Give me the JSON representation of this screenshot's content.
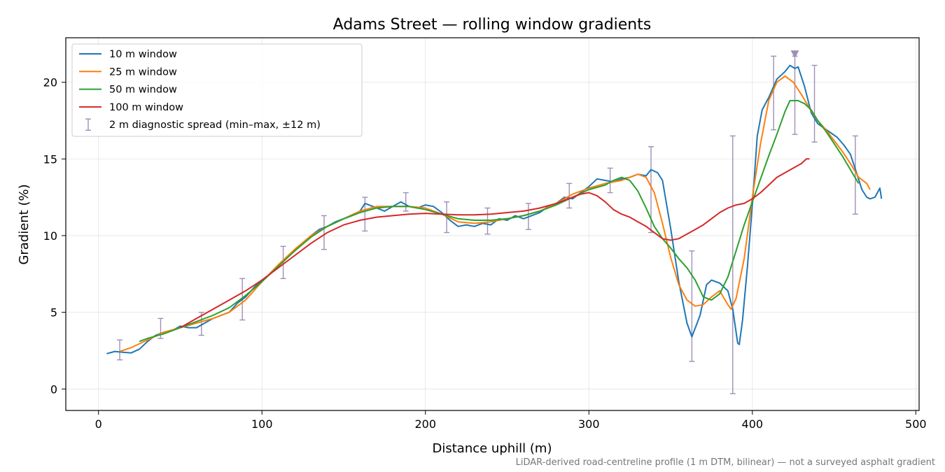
{
  "chart_data": {
    "type": "line",
    "title": "Adams Street — rolling window gradients",
    "xlabel": "Distance uphill (m)",
    "ylabel": "Gradient (%)",
    "xlim": [
      -20,
      502
    ],
    "ylim": [
      -1.4,
      22.9
    ],
    "xticks": [
      0,
      100,
      200,
      300,
      400,
      500
    ],
    "yticks": [
      0,
      5,
      10,
      15,
      20
    ],
    "grid": true,
    "legend_position": "top-left",
    "footnote": "LiDAR-derived road-centreline profile (1 m DTM, bilinear) — not a surveyed asphalt gradient",
    "series": [
      {
        "name": "10 m window",
        "color": "#1f77b4",
        "points": [
          [
            5,
            2.3
          ],
          [
            10,
            2.45
          ],
          [
            15,
            2.4
          ],
          [
            20,
            2.35
          ],
          [
            25,
            2.6
          ],
          [
            30,
            3.1
          ],
          [
            35,
            3.5
          ],
          [
            40,
            3.7
          ],
          [
            45,
            3.8
          ],
          [
            50,
            4.1
          ],
          [
            55,
            4.0
          ],
          [
            60,
            4.0
          ],
          [
            65,
            4.3
          ],
          [
            70,
            4.6
          ],
          [
            75,
            4.8
          ],
          [
            80,
            5.0
          ],
          [
            85,
            5.6
          ],
          [
            90,
            6.0
          ],
          [
            95,
            6.6
          ],
          [
            100,
            7.1
          ],
          [
            105,
            7.5
          ],
          [
            110,
            8.0
          ],
          [
            115,
            8.6
          ],
          [
            120,
            9.0
          ],
          [
            125,
            9.5
          ],
          [
            130,
            10.0
          ],
          [
            135,
            10.4
          ],
          [
            140,
            10.6
          ],
          [
            145,
            10.9
          ],
          [
            150,
            11.1
          ],
          [
            155,
            11.3
          ],
          [
            160,
            11.6
          ],
          [
            163,
            12.1
          ],
          [
            168,
            11.9
          ],
          [
            175,
            11.6
          ],
          [
            180,
            11.9
          ],
          [
            185,
            12.2
          ],
          [
            190,
            11.9
          ],
          [
            195,
            11.8
          ],
          [
            200,
            12.0
          ],
          [
            205,
            11.9
          ],
          [
            210,
            11.5
          ],
          [
            215,
            11.0
          ],
          [
            220,
            10.6
          ],
          [
            225,
            10.7
          ],
          [
            230,
            10.6
          ],
          [
            235,
            10.8
          ],
          [
            240,
            10.7
          ],
          [
            245,
            11.1
          ],
          [
            250,
            11.0
          ],
          [
            255,
            11.3
          ],
          [
            260,
            11.1
          ],
          [
            265,
            11.3
          ],
          [
            270,
            11.5
          ],
          [
            275,
            11.9
          ],
          [
            280,
            12.1
          ],
          [
            285,
            12.5
          ],
          [
            290,
            12.4
          ],
          [
            295,
            12.8
          ],
          [
            300,
            13.2
          ],
          [
            305,
            13.7
          ],
          [
            310,
            13.6
          ],
          [
            315,
            13.5
          ],
          [
            320,
            13.7
          ],
          [
            325,
            13.8
          ],
          [
            330,
            14.0
          ],
          [
            335,
            13.9
          ],
          [
            338,
            14.3
          ],
          [
            342,
            14.1
          ],
          [
            345,
            13.6
          ],
          [
            350,
            10.5
          ],
          [
            355,
            7.0
          ],
          [
            360,
            4.3
          ],
          [
            363,
            3.4
          ],
          [
            368,
            4.8
          ],
          [
            372,
            6.8
          ],
          [
            375,
            7.1
          ],
          [
            380,
            6.9
          ],
          [
            385,
            6.4
          ],
          [
            388,
            5.2
          ],
          [
            391,
            3.0
          ],
          [
            392,
            2.9
          ],
          [
            394,
            4.5
          ],
          [
            397,
            8.0
          ],
          [
            400,
            12.0
          ],
          [
            403,
            16.5
          ],
          [
            406,
            18.2
          ],
          [
            410,
            19.0
          ],
          [
            415,
            20.2
          ],
          [
            420,
            20.7
          ],
          [
            423,
            21.1
          ],
          [
            426,
            20.9
          ],
          [
            428,
            21.0
          ],
          [
            432,
            19.7
          ],
          [
            436,
            18.0
          ],
          [
            440,
            17.3
          ],
          [
            444,
            17.0
          ],
          [
            448,
            16.7
          ],
          [
            452,
            16.4
          ],
          [
            456,
            15.9
          ],
          [
            460,
            15.3
          ],
          [
            464,
            14.0
          ],
          [
            467,
            13.0
          ],
          [
            470,
            12.5
          ],
          [
            472,
            12.4
          ],
          [
            475,
            12.5
          ],
          [
            478,
            13.1
          ],
          [
            479,
            12.4
          ]
        ]
      },
      {
        "name": "25 m window",
        "color": "#ff7f0e",
        "points": [
          [
            13,
            2.45
          ],
          [
            20,
            2.7
          ],
          [
            30,
            3.2
          ],
          [
            40,
            3.7
          ],
          [
            50,
            4.0
          ],
          [
            60,
            4.3
          ],
          [
            70,
            4.6
          ],
          [
            80,
            5.0
          ],
          [
            90,
            5.8
          ],
          [
            100,
            7.0
          ],
          [
            110,
            8.1
          ],
          [
            120,
            9.1
          ],
          [
            130,
            10.0
          ],
          [
            140,
            10.6
          ],
          [
            150,
            11.1
          ],
          [
            160,
            11.6
          ],
          [
            170,
            11.9
          ],
          [
            180,
            11.9
          ],
          [
            190,
            11.9
          ],
          [
            200,
            11.8
          ],
          [
            210,
            11.4
          ],
          [
            220,
            10.9
          ],
          [
            230,
            10.8
          ],
          [
            240,
            10.9
          ],
          [
            250,
            11.1
          ],
          [
            260,
            11.3
          ],
          [
            270,
            11.6
          ],
          [
            280,
            12.1
          ],
          [
            290,
            12.7
          ],
          [
            300,
            13.1
          ],
          [
            310,
            13.4
          ],
          [
            320,
            13.6
          ],
          [
            330,
            14.0
          ],
          [
            335,
            13.8
          ],
          [
            340,
            12.8
          ],
          [
            345,
            10.8
          ],
          [
            350,
            8.6
          ],
          [
            355,
            6.8
          ],
          [
            360,
            5.8
          ],
          [
            365,
            5.4
          ],
          [
            370,
            5.5
          ],
          [
            375,
            6.0
          ],
          [
            380,
            6.4
          ],
          [
            385,
            5.5
          ],
          [
            387,
            5.2
          ],
          [
            390,
            5.9
          ],
          [
            395,
            8.5
          ],
          [
            400,
            12.5
          ],
          [
            405,
            16.0
          ],
          [
            410,
            18.8
          ],
          [
            415,
            20.0
          ],
          [
            420,
            20.4
          ],
          [
            425,
            20.0
          ],
          [
            430,
            19.2
          ],
          [
            435,
            18.3
          ],
          [
            440,
            17.5
          ],
          [
            445,
            16.9
          ],
          [
            450,
            16.2
          ],
          [
            455,
            15.5
          ],
          [
            460,
            14.7
          ],
          [
            465,
            13.8
          ],
          [
            470,
            13.4
          ],
          [
            472,
            13.0
          ]
        ]
      },
      {
        "name": "50 m window",
        "color": "#2ca02c",
        "points": [
          [
            25,
            3.1
          ],
          [
            30,
            3.3
          ],
          [
            40,
            3.6
          ],
          [
            50,
            4.0
          ],
          [
            60,
            4.4
          ],
          [
            70,
            4.8
          ],
          [
            80,
            5.3
          ],
          [
            90,
            6.1
          ],
          [
            100,
            7.0
          ],
          [
            110,
            8.0
          ],
          [
            120,
            9.0
          ],
          [
            130,
            9.9
          ],
          [
            140,
            10.6
          ],
          [
            150,
            11.1
          ],
          [
            160,
            11.5
          ],
          [
            170,
            11.8
          ],
          [
            180,
            11.9
          ],
          [
            190,
            11.9
          ],
          [
            200,
            11.7
          ],
          [
            210,
            11.4
          ],
          [
            220,
            11.1
          ],
          [
            230,
            11.0
          ],
          [
            240,
            11.0
          ],
          [
            250,
            11.1
          ],
          [
            260,
            11.3
          ],
          [
            270,
            11.6
          ],
          [
            280,
            12.0
          ],
          [
            290,
            12.5
          ],
          [
            300,
            13.0
          ],
          [
            310,
            13.3
          ],
          [
            315,
            13.6
          ],
          [
            320,
            13.8
          ],
          [
            325,
            13.6
          ],
          [
            330,
            12.9
          ],
          [
            335,
            11.8
          ],
          [
            340,
            10.6
          ],
          [
            345,
            9.8
          ],
          [
            350,
            9.2
          ],
          [
            355,
            8.5
          ],
          [
            360,
            7.9
          ],
          [
            365,
            7.1
          ],
          [
            370,
            6.0
          ],
          [
            375,
            5.8
          ],
          [
            380,
            6.2
          ],
          [
            385,
            7.3
          ],
          [
            390,
            9.0
          ],
          [
            395,
            10.7
          ],
          [
            400,
            12.2
          ],
          [
            405,
            13.7
          ],
          [
            410,
            15.2
          ],
          [
            415,
            16.6
          ],
          [
            420,
            18.1
          ],
          [
            423,
            18.8
          ],
          [
            428,
            18.8
          ],
          [
            432,
            18.6
          ],
          [
            436,
            18.2
          ],
          [
            440,
            17.5
          ],
          [
            445,
            16.8
          ],
          [
            450,
            16.0
          ],
          [
            455,
            15.2
          ],
          [
            460,
            14.3
          ],
          [
            465,
            13.4
          ]
        ]
      },
      {
        "name": "100 m window",
        "color": "#d62728",
        "points": [
          [
            50,
            4.0
          ],
          [
            60,
            4.6
          ],
          [
            70,
            5.2
          ],
          [
            80,
            5.8
          ],
          [
            90,
            6.4
          ],
          [
            100,
            7.1
          ],
          [
            110,
            7.9
          ],
          [
            120,
            8.7
          ],
          [
            130,
            9.5
          ],
          [
            140,
            10.2
          ],
          [
            150,
            10.7
          ],
          [
            160,
            11.0
          ],
          [
            170,
            11.2
          ],
          [
            180,
            11.3
          ],
          [
            190,
            11.4
          ],
          [
            200,
            11.45
          ],
          [
            210,
            11.4
          ],
          [
            220,
            11.35
          ],
          [
            230,
            11.35
          ],
          [
            240,
            11.4
          ],
          [
            250,
            11.5
          ],
          [
            260,
            11.6
          ],
          [
            270,
            11.8
          ],
          [
            280,
            12.1
          ],
          [
            290,
            12.5
          ],
          [
            295,
            12.7
          ],
          [
            300,
            12.8
          ],
          [
            305,
            12.6
          ],
          [
            310,
            12.2
          ],
          [
            315,
            11.7
          ],
          [
            320,
            11.4
          ],
          [
            325,
            11.2
          ],
          [
            330,
            10.9
          ],
          [
            335,
            10.6
          ],
          [
            340,
            10.2
          ],
          [
            345,
            9.8
          ],
          [
            350,
            9.7
          ],
          [
            355,
            9.8
          ],
          [
            360,
            10.1
          ],
          [
            365,
            10.4
          ],
          [
            370,
            10.7
          ],
          [
            375,
            11.1
          ],
          [
            380,
            11.5
          ],
          [
            385,
            11.8
          ],
          [
            390,
            12.0
          ],
          [
            395,
            12.1
          ],
          [
            400,
            12.4
          ],
          [
            405,
            12.8
          ],
          [
            410,
            13.3
          ],
          [
            415,
            13.8
          ],
          [
            420,
            14.1
          ],
          [
            425,
            14.4
          ],
          [
            430,
            14.7
          ],
          [
            433,
            15.0
          ],
          [
            435,
            15.0
          ]
        ]
      }
    ],
    "diagnostic_spread": {
      "name": "2 m diagnostic spread (min–max, ±12 m)",
      "color": "#9e8fb8",
      "bars": [
        [
          13,
          1.9,
          3.2
        ],
        [
          38,
          3.3,
          4.6
        ],
        [
          63,
          3.5,
          5.0
        ],
        [
          88,
          4.5,
          7.2
        ],
        [
          113,
          7.2,
          9.3
        ],
        [
          138,
          9.1,
          11.3
        ],
        [
          163,
          10.3,
          12.5
        ],
        [
          188,
          11.6,
          12.8
        ],
        [
          213,
          10.2,
          12.2
        ],
        [
          238,
          10.1,
          11.8
        ],
        [
          263,
          10.4,
          12.1
        ],
        [
          288,
          11.8,
          13.4
        ],
        [
          313,
          12.8,
          14.4
        ],
        [
          338,
          10.2,
          15.8
        ],
        [
          363,
          1.8,
          9.0
        ],
        [
          388,
          -0.3,
          16.5
        ],
        [
          413,
          16.9,
          21.7
        ],
        [
          426,
          16.6,
          21.7
        ],
        [
          438,
          16.1,
          21.1
        ],
        [
          463,
          11.4,
          16.5
        ]
      ],
      "marker": {
        "x": 426,
        "y": 21.8,
        "shape": "down-triangle"
      }
    }
  }
}
